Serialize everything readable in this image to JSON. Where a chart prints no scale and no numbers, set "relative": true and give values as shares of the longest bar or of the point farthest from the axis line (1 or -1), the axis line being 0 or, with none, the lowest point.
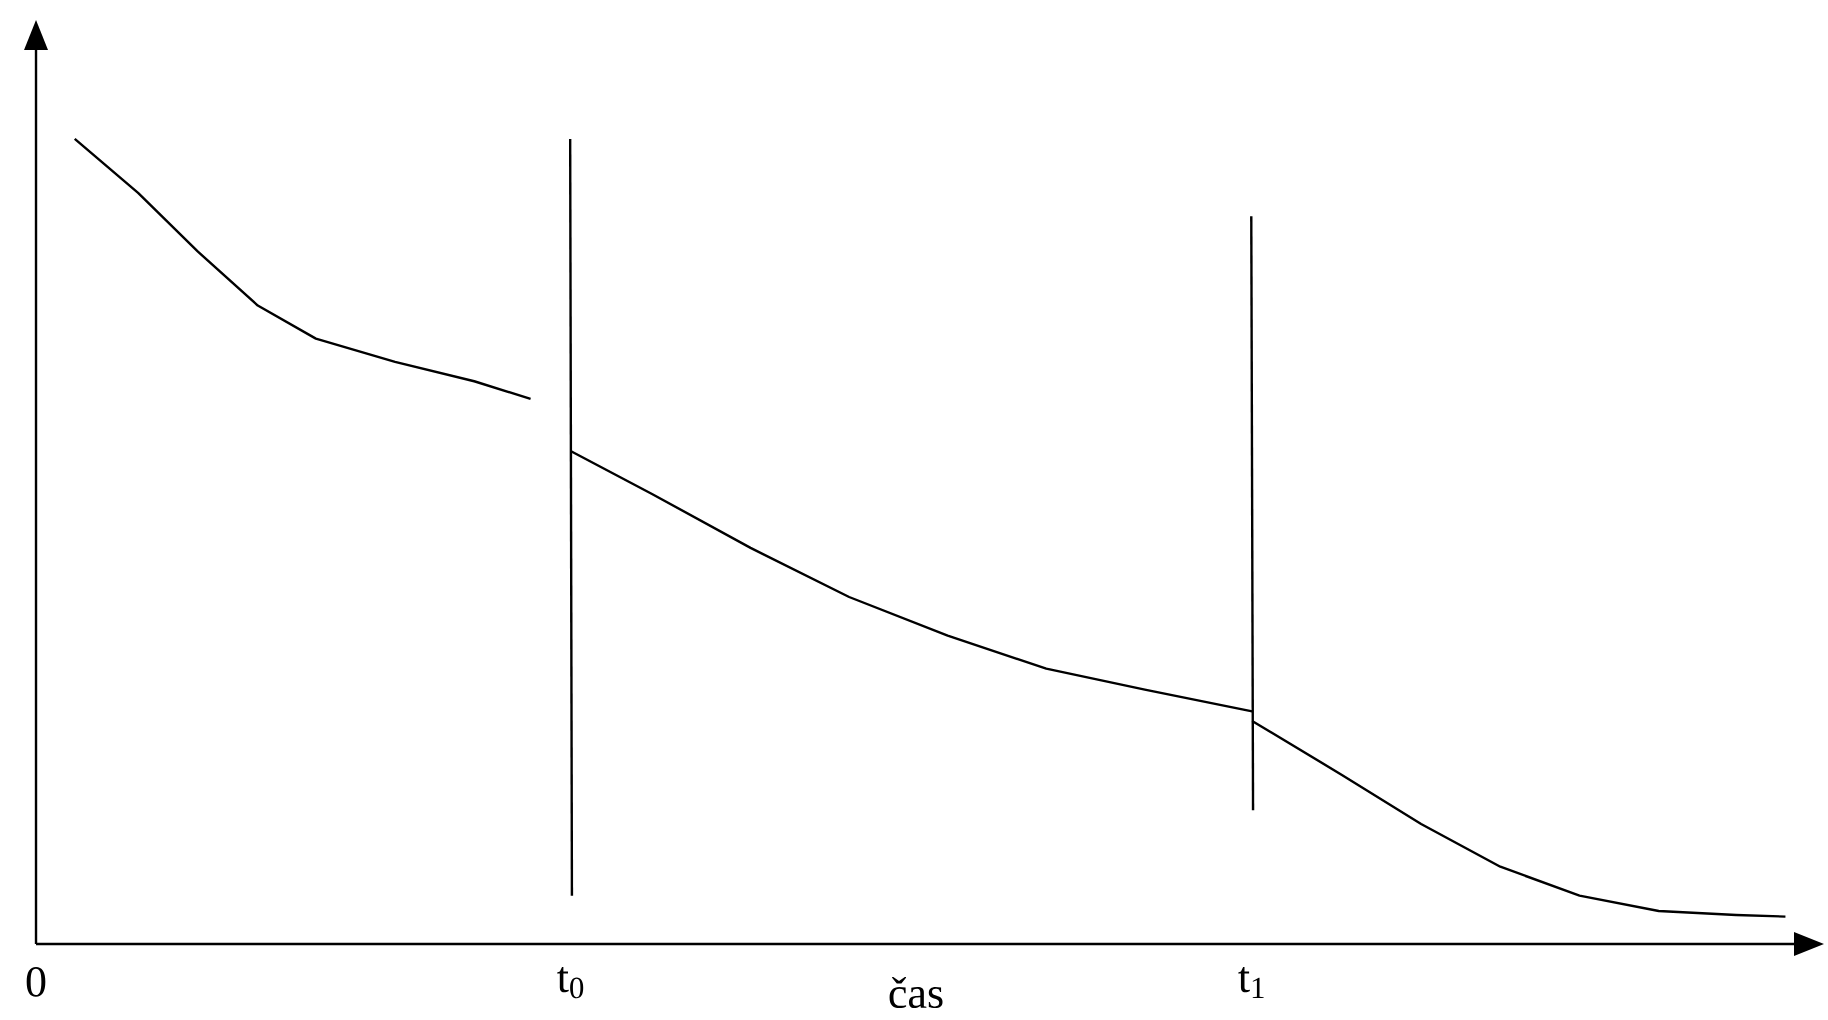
{
  "chart_data": {
    "type": "line",
    "relative": true,
    "xlabel": "čas",
    "xlim": [
      0,
      1
    ],
    "xticks": [
      {
        "value": 0,
        "label": "0"
      },
      {
        "value": 0.304,
        "label": "t$_{0}$"
      },
      {
        "value": 0.691,
        "label": "t$_{1}$"
      }
    ],
    "series": [
      {
        "color": "#000000",
        "x": [
          0.022,
          0.058,
          0.092,
          0.126,
          0.159,
          0.204,
          0.249,
          0.281
        ],
        "values": [
          1.0,
          0.933,
          0.86,
          0.793,
          0.752,
          0.723,
          0.699,
          0.677
        ]
      },
      {
        "color": "#000000",
        "x": [
          0.304,
          0.35,
          0.406,
          0.462,
          0.518,
          0.574,
          0.63,
          0.691
        ],
        "values": [
          0.612,
          0.559,
          0.492,
          0.431,
          0.383,
          0.342,
          0.316,
          0.289
        ]
      },
      {
        "color": "#000000",
        "x": [
          0.691,
          0.742,
          0.787,
          0.832,
          0.877,
          0.922,
          0.966,
          0.994
        ],
        "values": [
          0.277,
          0.21,
          0.149,
          0.096,
          0.06,
          0.041,
          0.036,
          0.034
        ]
      },
      {
        "color": "#000000",
        "x": [
          0.3035,
          0.3045
        ],
        "values": [
          1.0,
          0.06
        ]
      },
      {
        "color": "#000000",
        "x": [
          0.6905,
          0.6915
        ],
        "values": [
          0.904,
          0.166
        ]
      }
    ]
  }
}
